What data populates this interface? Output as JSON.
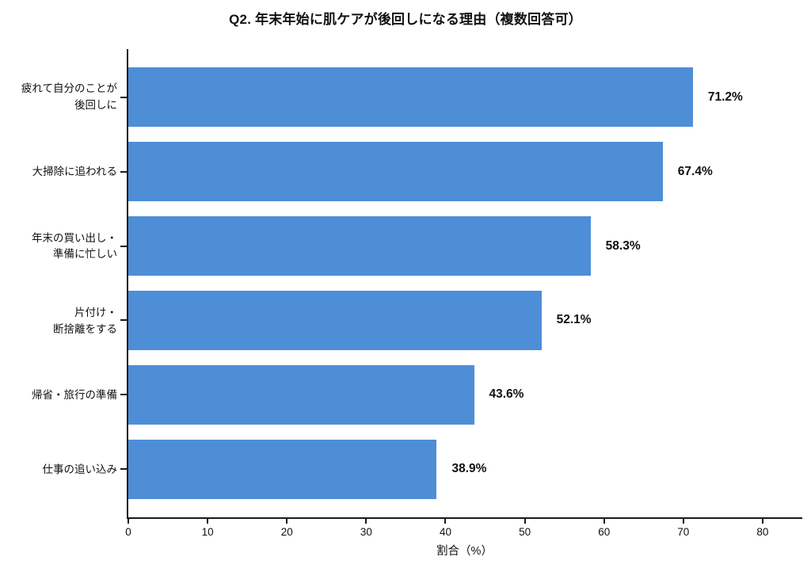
{
  "title": "Q2. 年末年始に肌ケアが後回しになる理由（複数回答可）",
  "chart_data": {
    "type": "bar",
    "orientation": "horizontal",
    "title": "Q2. 年末年始に肌ケアが後回しになる理由（複数回答可）",
    "categories": [
      "疲れて自分のことが\n後回しに",
      "大掃除に追われる",
      "年末の買い出し・\n準備に忙しい",
      "片付け・\n断捨離をする",
      "帰省・旅行の準備",
      "仕事の追い込み"
    ],
    "values": [
      71.2,
      67.4,
      58.3,
      52.1,
      43.6,
      38.9
    ],
    "value_labels": [
      "71.2%",
      "67.4%",
      "58.3%",
      "52.1%",
      "43.6%",
      "38.9%"
    ],
    "xlabel": "割合（%）",
    "ylabel": "",
    "xlim": [
      0,
      85
    ],
    "xticks": [
      0,
      10,
      20,
      30,
      40,
      50,
      60,
      70,
      80
    ],
    "xtick_labels": [
      "0",
      "10",
      "20",
      "30",
      "40",
      "50",
      "60",
      "70",
      "80"
    ],
    "grid": false,
    "legend": null,
    "bar_color": "#4D8ED7",
    "text_color": "#111111",
    "axis_color": "#1a1a1a",
    "background_color": "#ffffff"
  }
}
